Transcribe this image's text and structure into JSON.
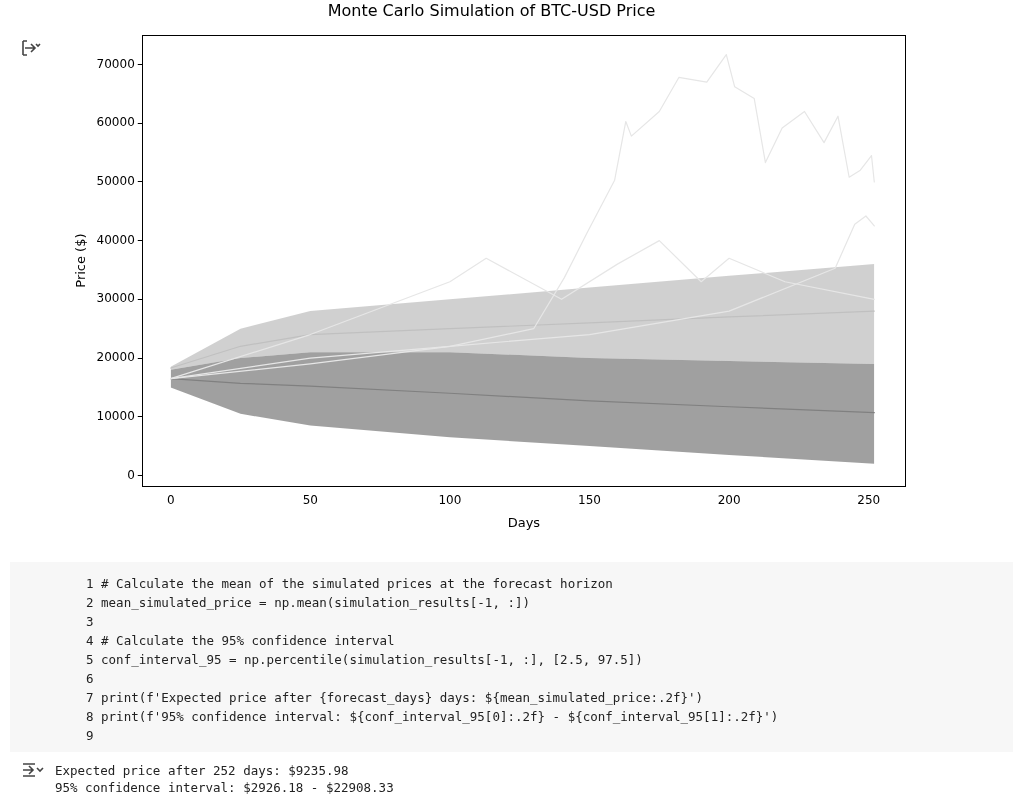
{
  "chart_data": {
    "type": "line",
    "title": "Monte Carlo Simulation of BTC-USD Price",
    "xlabel": "Days",
    "ylabel": "Price ($)",
    "xlim": [
      -10,
      263
    ],
    "xticks": [
      0,
      50,
      100,
      150,
      200,
      250
    ],
    "ylim": [
      -1800,
      75000
    ],
    "yticks": [
      0,
      10000,
      20000,
      30000,
      40000,
      50000,
      60000,
      70000
    ],
    "grid": false,
    "legend": false,
    "marker": "none",
    "line_style": "solid",
    "series": [
      {
        "color": "#c0c0c0",
        "x": [
          0,
          25,
          50,
          100,
          150,
          200,
          252
        ],
        "values": [
          18300,
          22000,
          24000,
          25000,
          26000,
          27000,
          28000
        ],
        "lower": [
          18000,
          20000,
          21000,
          21000,
          20000,
          19500,
          19000
        ],
        "upper": [
          18500,
          25000,
          28000,
          30000,
          32000,
          34000,
          36000
        ]
      },
      {
        "color": "#808080",
        "x": [
          0,
          25,
          50,
          100,
          150,
          200,
          252
        ],
        "values": [
          16500,
          15700,
          15200,
          14000,
          12700,
          11700,
          10700
        ],
        "lower": [
          15000,
          10500,
          8500,
          6500,
          5000,
          3500,
          2000
        ],
        "upper": [
          18000,
          20000,
          21000,
          21000,
          20000,
          19500,
          19000
        ]
      },
      {
        "color": "#e6e6e6",
        "x": [
          0,
          50,
          100,
          130,
          141,
          149,
          159,
          163,
          165,
          175,
          182,
          192,
          199,
          202,
          209,
          213,
          219,
          227,
          234,
          239,
          243,
          247,
          251,
          252
        ],
        "values": [
          16500,
          19000,
          22000,
          25000,
          33700,
          41200,
          50300,
          60300,
          57800,
          62000,
          67800,
          67000,
          71700,
          66200,
          64200,
          53300,
          59200,
          62000,
          56700,
          61200,
          50800,
          52000,
          54500,
          50000
        ]
      },
      {
        "color": "#e6e6e6",
        "x": [
          0,
          50,
          100,
          150,
          200,
          238,
          245,
          249,
          252
        ],
        "values": [
          16500,
          20000,
          22000,
          24000,
          28000,
          35300,
          42800,
          44200,
          42500
        ]
      },
      {
        "color": "#e6e6e6",
        "x": [
          0,
          50,
          100,
          113,
          140,
          160,
          175,
          190,
          200,
          220,
          252
        ],
        "values": [
          16500,
          24000,
          33000,
          37000,
          30000,
          36000,
          40000,
          33000,
          37000,
          33000,
          30000
        ]
      }
    ],
    "annotations": [
      "1 # Calculate the mean of the simulated prices at the forecast horizon",
      "2 mean_simulated_price = np.mean(simulation_results[-1, :])",
      "3",
      "4 # Calculate the 95% confidence interval",
      "5 conf_interval_95 = np.percentile(simulation_results[-1, :], [2.5, 97.5])",
      "6",
      "7 print(f'Expected price after {forecast_days} days: ${mean_simulated_price:.2f}')",
      "8 print(f'95% confidence interval: ${conf_interval_95[0]:.2f} - ${conf_interval_95[1]:.2f}')",
      "9",
      "Expected price after 252 days: $9235.98",
      "95% confidence interval: $2926.18 - $22908.33"
    ]
  }
}
